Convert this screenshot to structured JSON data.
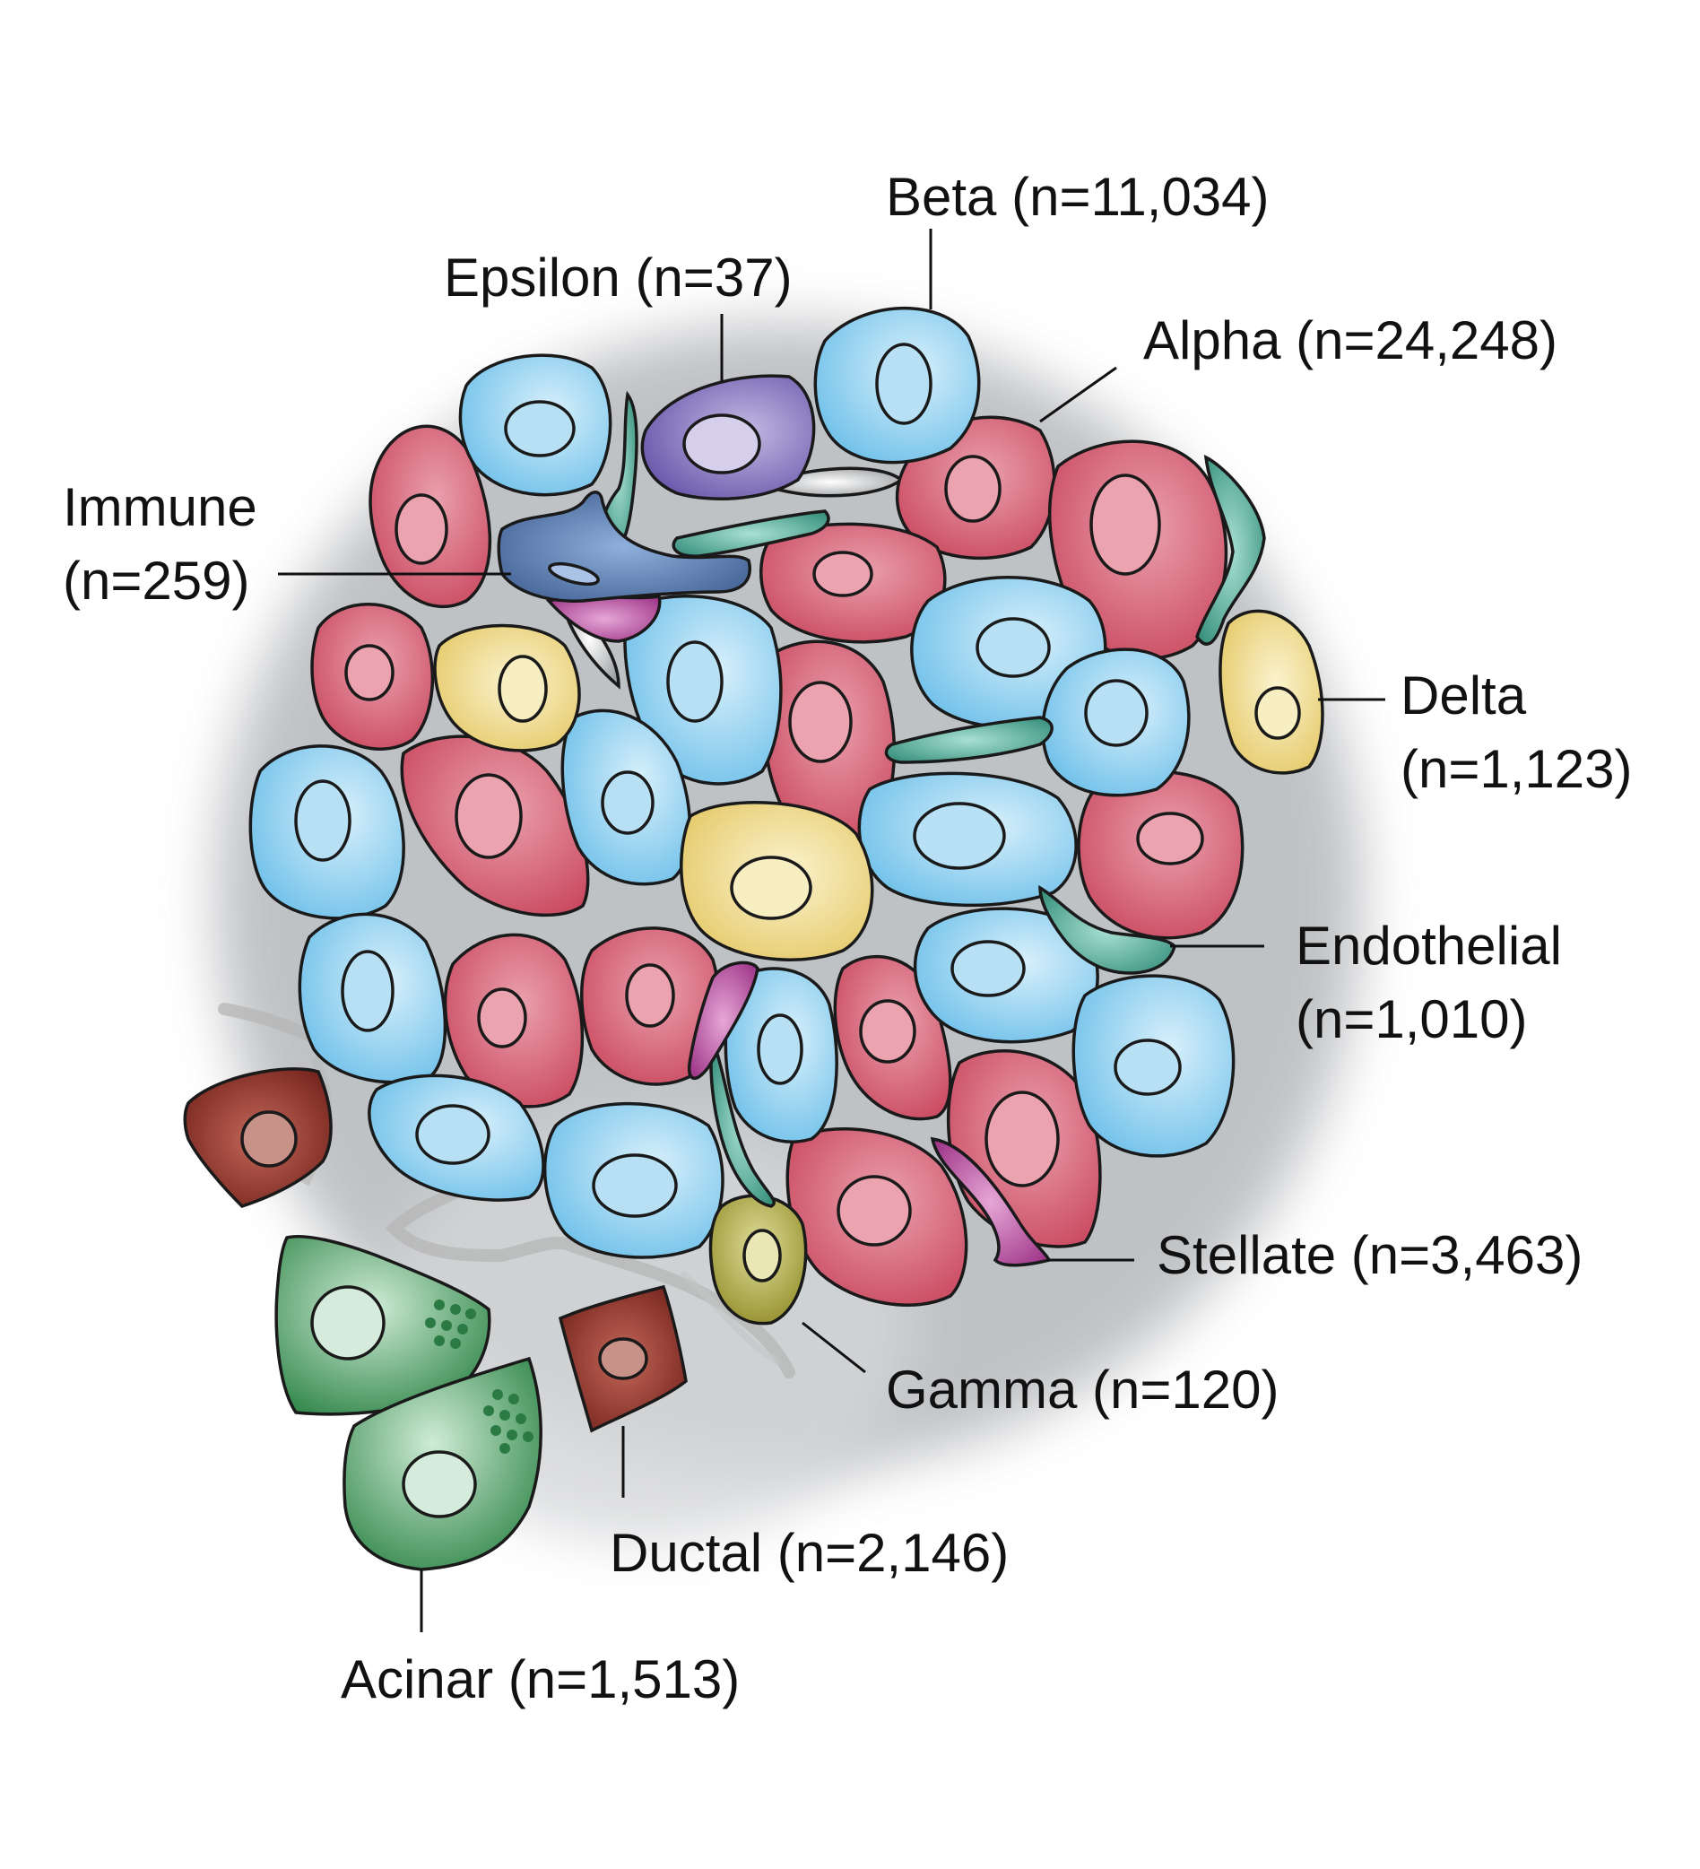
{
  "labels": {
    "beta": "Beta (n=11,034)",
    "epsilon": "Epsilon (n=37)",
    "alpha": "Alpha (n=24,248)",
    "immune_line1": "Immune",
    "immune_line2": "(n=259)",
    "delta_line1": "Delta",
    "delta_line2": "(n=1,123)",
    "endothelial_line1": "Endothelial",
    "endothelial_line2": "(n=1,010)",
    "stellate": "Stellate (n=3,463)",
    "gamma": "Gamma (n=120)",
    "ductal": "Ductal (n=2,146)",
    "acinar": "Acinar (n=1,513)"
  },
  "colors": {
    "alpha": "#d6596f",
    "beta": "#79c8ee",
    "delta": "#ecd67c",
    "gamma": "#a6a238",
    "epsilon": "#7b68b8",
    "endothelial": "#3fa28e",
    "stellate": "#b8479c",
    "immune": "#4a6da2",
    "ductal": "#8c2c22",
    "acinar": "#3f9a58"
  }
}
